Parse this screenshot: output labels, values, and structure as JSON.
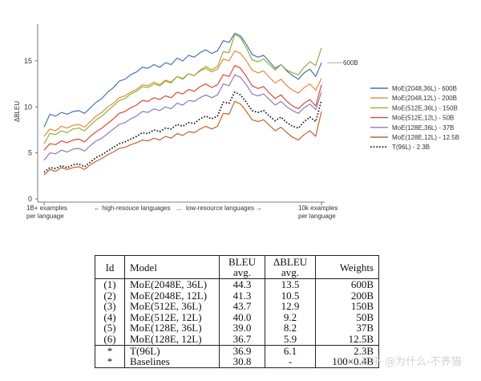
{
  "chart_data": {
    "type": "line",
    "title": "",
    "ylabel": "ΔBLEU",
    "ylim": [
      0,
      19
    ],
    "yticks": [
      0,
      5,
      10,
      15
    ],
    "x_annotations": {
      "left": [
        "1B+ examples",
        "per language"
      ],
      "right": [
        "10k examples",
        "per language"
      ],
      "high": "← high-resouce languages",
      "sep": "...",
      "low": "low-resource languages →"
    },
    "end_label": "600B",
    "n_points": 49,
    "series": [
      {
        "name": "MoE(2048,36L) - 600B",
        "color": "#4a72b0",
        "style": "solid",
        "values": [
          7.8,
          9.2,
          9.0,
          9.4,
          9.2,
          9.5,
          9.6,
          9.3,
          9.9,
          10.5,
          10.9,
          11.6,
          12.1,
          12.8,
          13.0,
          13.5,
          13.8,
          14.3,
          14.2,
          14.6,
          14.3,
          14.8,
          14.6,
          15.3,
          15.0,
          15.6,
          15.4,
          15.9,
          16.2,
          15.8,
          16.1,
          17.2,
          17.0,
          18.0,
          17.7,
          16.8,
          15.7,
          15.4,
          15.6,
          14.9,
          14.2,
          14.6,
          13.9,
          13.4,
          13.0,
          13.7,
          14.1,
          13.3,
          14.8
        ]
      },
      {
        "name": "MoE(2048,12L) - 200B",
        "color": "#e88a3a",
        "style": "solid",
        "values": [
          6.8,
          7.6,
          7.4,
          7.9,
          7.7,
          8.0,
          8.1,
          7.8,
          8.4,
          9.0,
          9.4,
          10.0,
          10.4,
          11.0,
          11.2,
          11.6,
          11.9,
          12.4,
          12.3,
          12.7,
          12.4,
          12.9,
          12.7,
          13.3,
          13.1,
          13.6,
          13.4,
          13.9,
          14.2,
          13.8,
          14.1,
          15.2,
          15.0,
          16.1,
          15.8,
          15.0,
          14.0,
          13.7,
          13.9,
          13.2,
          12.6,
          13.0,
          12.3,
          11.8,
          11.5,
          12.1,
          12.5,
          11.8,
          13.1
        ]
      },
      {
        "name": "MoE(512E,36L) - 150B",
        "color": "#8fb13a",
        "style": "solid",
        "values": [
          6.0,
          7.1,
          7.0,
          7.4,
          7.2,
          7.6,
          7.7,
          7.4,
          8.0,
          8.6,
          9.0,
          9.6,
          10.1,
          10.7,
          10.9,
          11.4,
          11.7,
          12.2,
          12.1,
          12.5,
          12.3,
          12.8,
          12.6,
          13.3,
          13.0,
          13.6,
          13.4,
          14.0,
          14.4,
          14.0,
          14.4,
          16.0,
          15.9,
          17.9,
          17.5,
          16.4,
          15.1,
          14.9,
          15.2,
          14.6,
          14.0,
          14.6,
          14.0,
          13.7,
          13.5,
          14.3,
          14.9,
          14.5,
          16.4
        ]
      },
      {
        "name": "MoE(512E,12L) - 50B",
        "color": "#d84a3c",
        "style": "solid",
        "values": [
          5.3,
          6.0,
          5.9,
          6.3,
          6.1,
          6.4,
          6.5,
          6.2,
          6.8,
          7.3,
          7.7,
          8.2,
          8.7,
          9.3,
          9.5,
          9.9,
          10.2,
          10.7,
          10.6,
          11.0,
          10.8,
          11.2,
          11.0,
          11.6,
          11.4,
          11.9,
          11.7,
          12.2,
          12.5,
          12.1,
          12.4,
          13.5,
          13.3,
          14.5,
          14.2,
          13.3,
          12.3,
          12.0,
          12.2,
          11.5,
          10.9,
          11.3,
          10.6,
          10.1,
          9.8,
          10.4,
          10.8,
          10.1,
          12.4
        ]
      },
      {
        "name": "MoE(128E,36L) - 37B",
        "color": "#9178c0",
        "style": "solid",
        "values": [
          4.2,
          5.0,
          4.9,
          5.3,
          5.1,
          5.4,
          5.5,
          5.2,
          5.8,
          6.3,
          6.6,
          7.1,
          7.6,
          8.1,
          8.3,
          8.7,
          9.0,
          9.5,
          9.4,
          9.8,
          9.6,
          10.0,
          9.8,
          10.4,
          10.2,
          10.7,
          10.6,
          11.0,
          11.3,
          11.0,
          11.3,
          12.5,
          12.3,
          13.5,
          13.2,
          12.4,
          11.4,
          11.2,
          11.4,
          10.8,
          10.2,
          10.6,
          10.0,
          9.6,
          9.3,
          9.9,
          10.3,
          9.7,
          11.6
        ]
      },
      {
        "name": "MoE(128E,12L) - 12.5B",
        "color": "#c4642e",
        "style": "solid",
        "values": [
          2.6,
          3.2,
          3.0,
          3.4,
          3.2,
          3.4,
          3.5,
          3.2,
          3.7,
          4.1,
          4.4,
          4.8,
          5.1,
          5.5,
          5.6,
          5.9,
          6.1,
          6.4,
          6.3,
          6.6,
          6.4,
          6.8,
          6.6,
          7.1,
          6.9,
          7.3,
          7.2,
          7.6,
          7.9,
          7.6,
          7.9,
          9.3,
          9.2,
          10.6,
          10.3,
          9.5,
          8.6,
          8.4,
          8.6,
          8.0,
          7.4,
          7.8,
          7.2,
          6.7,
          6.4,
          7.0,
          7.4,
          6.8,
          9.5
        ]
      },
      {
        "name": "T(96L) - 2.3B",
        "color": "#111111",
        "style": "dotted",
        "values": [
          2.9,
          3.4,
          3.3,
          3.6,
          3.4,
          3.7,
          3.8,
          3.5,
          4.0,
          4.5,
          4.8,
          5.2,
          5.6,
          6.0,
          6.2,
          6.5,
          6.8,
          7.2,
          7.1,
          7.5,
          7.3,
          7.7,
          7.6,
          8.1,
          7.9,
          8.3,
          8.2,
          8.7,
          9.0,
          8.7,
          9.0,
          10.5,
          10.4,
          11.6,
          11.3,
          10.5,
          9.6,
          9.4,
          9.6,
          9.0,
          8.5,
          8.9,
          8.3,
          7.9,
          7.7,
          8.4,
          8.9,
          8.4,
          10.7
        ]
      }
    ]
  },
  "table": {
    "headers": {
      "id": "Id",
      "model": "Model",
      "bleu": [
        "BLEU",
        "avg."
      ],
      "dbleu": [
        "ΔBLEU",
        "avg."
      ],
      "weights": "Weights"
    },
    "rows": [
      {
        "id": "(1)",
        "model": "MoE(2048E, 36L)",
        "bleu": "44.3",
        "dbleu": "13.5",
        "weights": "600B"
      },
      {
        "id": "(2)",
        "model": "MoE(2048E, 12L)",
        "bleu": "41.3",
        "dbleu": "10.5",
        "weights": "200B"
      },
      {
        "id": "(3)",
        "model": "MoE(512E, 36L)",
        "bleu": "43.7",
        "dbleu": "12.9",
        "weights": "150B"
      },
      {
        "id": "(4)",
        "model": "MoE(512E, 12L)",
        "bleu": "40.0",
        "dbleu": "9.2",
        "weights": "50B"
      },
      {
        "id": "(5)",
        "model": "MoE(128E, 36L)",
        "bleu": "39.0",
        "dbleu": "8.2",
        "weights": "37B"
      },
      {
        "id": "(6)",
        "model": "MoE(128E, 12L)",
        "bleu": "36.7",
        "dbleu": "5.9",
        "weights": "12.5B"
      },
      {
        "id": "*",
        "model": "T(96L)",
        "bleu": "36.9",
        "dbleu": "6.1",
        "weights": "2.3B"
      },
      {
        "id": "*",
        "model": "Baselines",
        "bleu": "30.8",
        "dbleu": "-",
        "weights": "100×0.4B"
      }
    ]
  },
  "watermark": "知乎 @为什么-不荞猫"
}
